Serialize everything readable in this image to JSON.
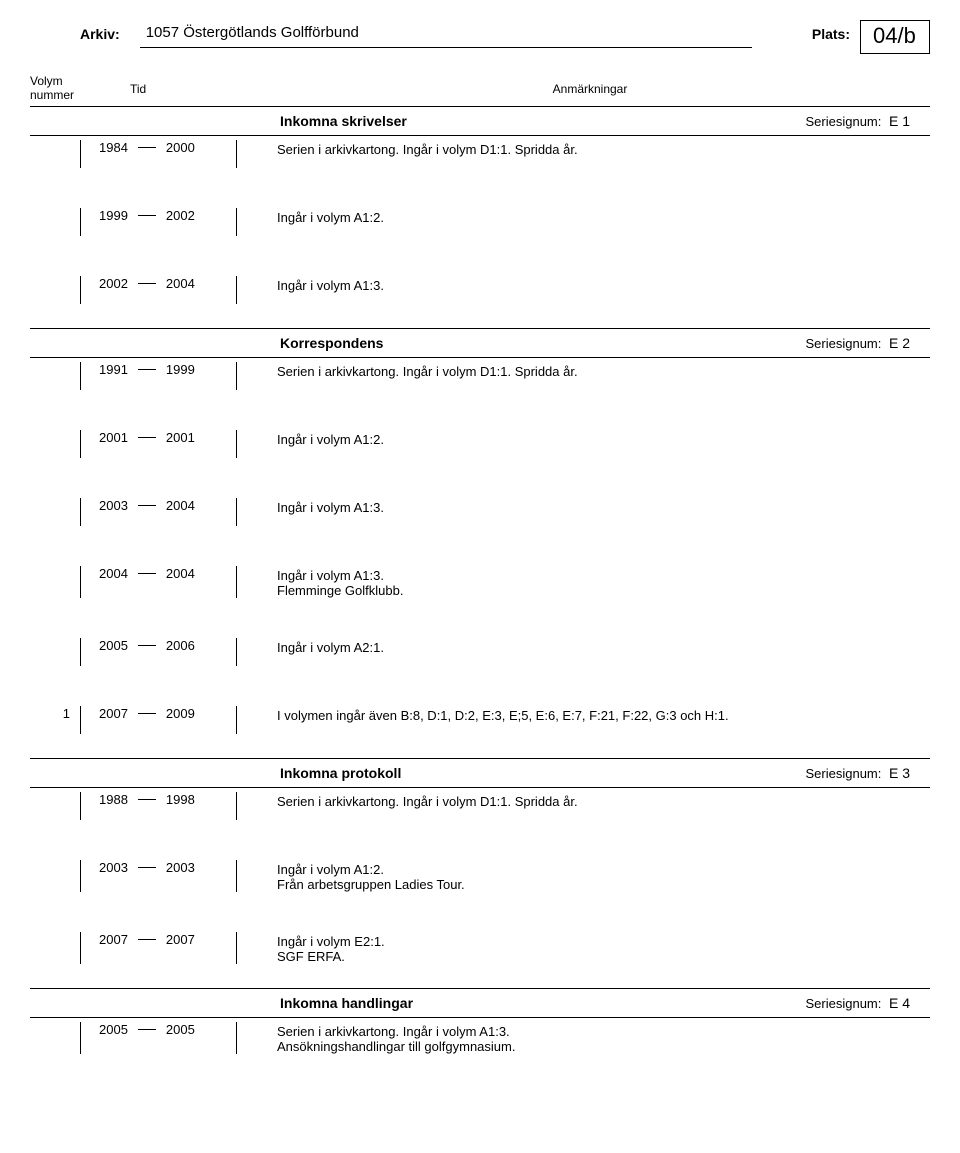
{
  "header": {
    "arkiv_label": "Arkiv:",
    "arkiv_value": "1057 Östergötlands Golfförbund",
    "plats_label": "Plats:",
    "plats_value": "04/b"
  },
  "columns": {
    "volym_line1": "Volym",
    "volym_line2": "nummer",
    "tid": "Tid",
    "anm": "Anmärkningar"
  },
  "series": [
    {
      "title": "Inkomna skrivelser",
      "signum_label": "Seriesignum:",
      "signum_value": "E 1",
      "entries": [
        {
          "num": "",
          "y1": "1984",
          "y2": "2000",
          "remarks": [
            "Serien i arkivkartong. Ingår i volym D1:1. Spridda år."
          ]
        },
        {
          "num": "",
          "y1": "1999",
          "y2": "2002",
          "remarks": [
            "Ingår i volym A1:2."
          ]
        },
        {
          "num": "",
          "y1": "2002",
          "y2": "2004",
          "remarks": [
            "Ingår i volym A1:3."
          ]
        }
      ]
    },
    {
      "title": "Korrespondens",
      "signum_label": "Seriesignum:",
      "signum_value": "E 2",
      "entries": [
        {
          "num": "",
          "y1": "1991",
          "y2": "1999",
          "remarks": [
            "Serien i arkivkartong. Ingår i volym D1:1. Spridda år."
          ]
        },
        {
          "num": "",
          "y1": "2001",
          "y2": "2001",
          "remarks": [
            "Ingår i volym A1:2."
          ]
        },
        {
          "num": "",
          "y1": "2003",
          "y2": "2004",
          "remarks": [
            "Ingår i volym A1:3."
          ]
        },
        {
          "num": "",
          "y1": "2004",
          "y2": "2004",
          "remarks": [
            "Ingår i volym A1:3.",
            "Flemminge Golfklubb."
          ]
        },
        {
          "num": "",
          "y1": "2005",
          "y2": "2006",
          "remarks": [
            "Ingår i volym A2:1."
          ]
        },
        {
          "num": "1",
          "y1": "2007",
          "y2": "2009",
          "remarks": [
            "I volymen ingår även B:8, D:1, D:2, E:3, E;5, E:6, E:7, F:21, F:22, G:3 och H:1."
          ]
        }
      ]
    },
    {
      "title": "Inkomna protokoll",
      "signum_label": "Seriesignum:",
      "signum_value": "E 3",
      "entries": [
        {
          "num": "",
          "y1": "1988",
          "y2": "1998",
          "remarks": [
            "Serien i arkivkartong. Ingår i volym D1:1. Spridda år."
          ]
        },
        {
          "num": "",
          "y1": "2003",
          "y2": "2003",
          "remarks": [
            "Ingår  i volym A1:2.",
            "Från arbetsgruppen Ladies Tour."
          ]
        },
        {
          "num": "",
          "y1": "2007",
          "y2": "2007",
          "remarks": [
            "Ingår i volym E2:1.",
            "SGF ERFA."
          ]
        }
      ]
    },
    {
      "title": "Inkomna handlingar",
      "signum_label": "Seriesignum:",
      "signum_value": "E 4",
      "entries": [
        {
          "num": "",
          "y1": "2005",
          "y2": "2005",
          "remarks": [
            "Serien i arkivkartong. Ingår i volym A1:3.",
            "Ansökningshandlingar till golfgymnasium."
          ]
        }
      ]
    }
  ]
}
